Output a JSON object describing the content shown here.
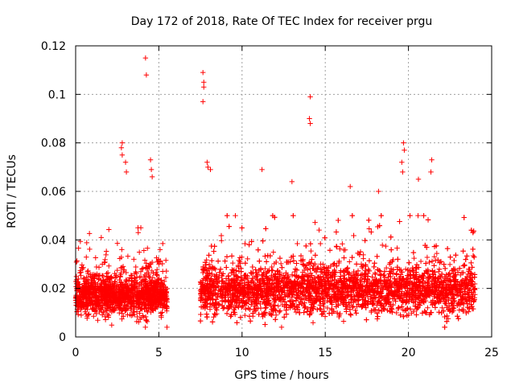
{
  "chart_data": {
    "type": "scatter",
    "title": "Day 172 of 2018, Rate Of TEC Index for receiver prgu",
    "xlabel": "GPS time / hours",
    "ylabel": "ROTI / TECUs",
    "xlim": [
      0,
      25
    ],
    "ylim": [
      0,
      0.12
    ],
    "xticks": [
      0,
      5,
      10,
      15,
      20,
      25
    ],
    "xtick_labels": [
      "0",
      "5",
      "10",
      "15",
      "20",
      "25"
    ],
    "yticks": [
      0,
      0.02,
      0.04,
      0.06,
      0.08,
      0.1,
      0.12
    ],
    "ytick_labels": [
      "0",
      "0.02",
      "0.04",
      "0.06",
      "0.08",
      "0.1",
      "0.12"
    ],
    "grid": true,
    "marker": "+",
    "series_color": "#ff0000",
    "gaps": [
      [
        5.5,
        7.5
      ]
    ],
    "notable_points": [
      {
        "x": 4.2,
        "y": 0.115
      },
      {
        "x": 4.25,
        "y": 0.108
      },
      {
        "x": 7.65,
        "y": 0.109
      },
      {
        "x": 7.7,
        "y": 0.105
      },
      {
        "x": 7.7,
        "y": 0.103
      },
      {
        "x": 7.65,
        "y": 0.097
      },
      {
        "x": 14.1,
        "y": 0.099
      },
      {
        "x": 14.05,
        "y": 0.09
      },
      {
        "x": 14.1,
        "y": 0.088
      },
      {
        "x": 2.8,
        "y": 0.08
      },
      {
        "x": 2.75,
        "y": 0.078
      },
      {
        "x": 2.8,
        "y": 0.075
      },
      {
        "x": 3.0,
        "y": 0.072
      },
      {
        "x": 3.05,
        "y": 0.068
      },
      {
        "x": 4.5,
        "y": 0.073
      },
      {
        "x": 4.55,
        "y": 0.069
      },
      {
        "x": 4.6,
        "y": 0.066
      },
      {
        "x": 19.7,
        "y": 0.08
      },
      {
        "x": 19.75,
        "y": 0.077
      },
      {
        "x": 19.6,
        "y": 0.072
      },
      {
        "x": 19.65,
        "y": 0.068
      },
      {
        "x": 21.4,
        "y": 0.073
      },
      {
        "x": 21.35,
        "y": 0.068
      },
      {
        "x": 20.6,
        "y": 0.065
      },
      {
        "x": 7.9,
        "y": 0.072
      },
      {
        "x": 7.95,
        "y": 0.07
      },
      {
        "x": 8.1,
        "y": 0.069
      },
      {
        "x": 11.2,
        "y": 0.069
      },
      {
        "x": 13.0,
        "y": 0.064
      },
      {
        "x": 16.5,
        "y": 0.062
      },
      {
        "x": 18.2,
        "y": 0.06
      }
    ],
    "density_profile": [
      {
        "x_range": [
          0.0,
          5.5
        ],
        "baseline": 0.017,
        "spread": 0.007,
        "max_typical": 0.045
      },
      {
        "x_range": [
          7.5,
          24.0
        ],
        "baseline": 0.019,
        "spread": 0.009,
        "max_typical": 0.05
      }
    ]
  }
}
